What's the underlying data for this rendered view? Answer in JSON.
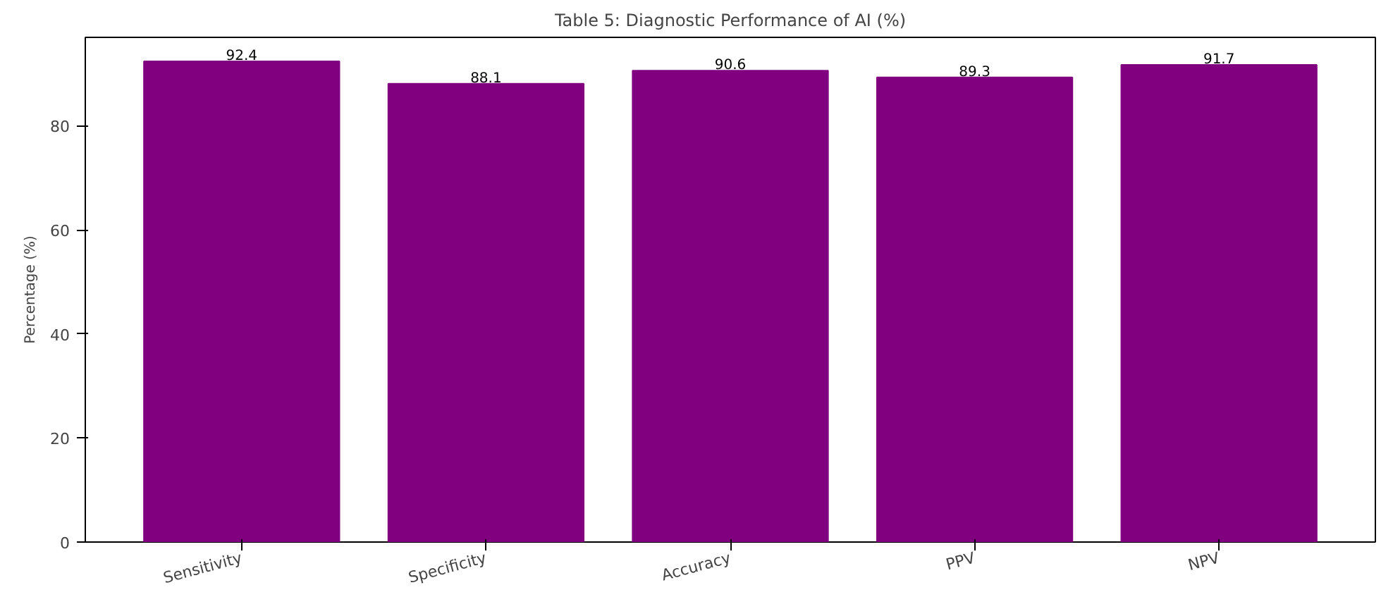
{
  "chart_data": {
    "type": "bar",
    "title": "Table 5: Diagnostic Performance of AI (%)",
    "ylabel": "Percentage (%)",
    "categories": [
      "Sensitivity",
      "Specificity",
      "Accuracy",
      "PPV",
      "NPV"
    ],
    "values": [
      92.4,
      88.1,
      90.6,
      89.3,
      91.7
    ],
    "color": "#800080",
    "ylim": [
      0,
      97
    ],
    "yticks": [
      0,
      20,
      40,
      60,
      80
    ],
    "data_labels": true
  }
}
